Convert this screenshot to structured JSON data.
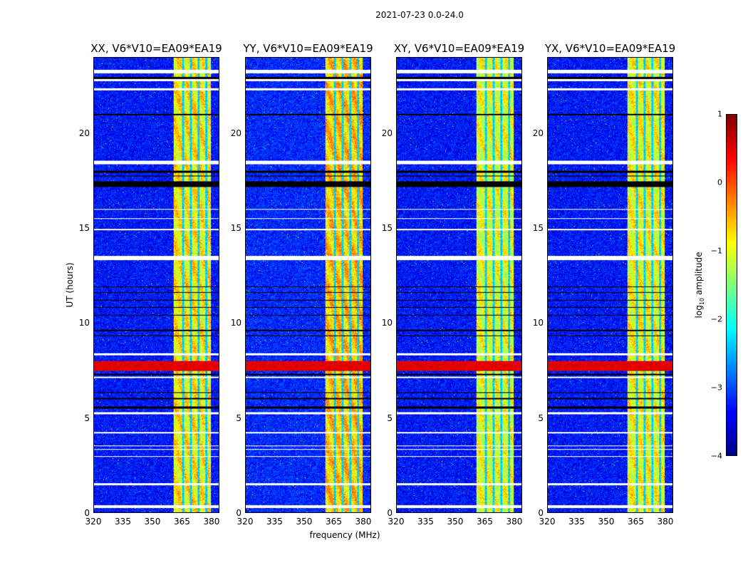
{
  "chart_data": {
    "type": "heatmap",
    "title": "2021-07-23 0.0-24.0",
    "xlabel": "frequency (MHz)",
    "ylabel": "UT (hours)",
    "xlim": [
      320,
      384
    ],
    "ylim": [
      0,
      24
    ],
    "xticks": [
      "320",
      "335",
      "350",
      "365",
      "380"
    ],
    "yticks": [
      "0",
      "5",
      "10",
      "15",
      "20"
    ],
    "panels": [
      {
        "title": "XX, V6*V10=EA09*EA19",
        "band_level": -0.8,
        "bg_level": -3.3
      },
      {
        "title": "YY, V6*V10=EA09*EA19",
        "band_level": -0.6,
        "bg_level": -3.2
      },
      {
        "title": "XY, V6*V10=EA09*EA19",
        "band_level": -1.0,
        "bg_level": -3.3
      },
      {
        "title": "YX, V6*V10=EA09*EA19",
        "band_level": -0.9,
        "bg_level": -3.3
      }
    ],
    "bright_band_mhz": [
      360.5,
      380
    ],
    "band_gaps_mhz": [
      365.5,
      369.5,
      373.5,
      377.5
    ],
    "flagged_white_ut": [
      [
        0.25,
        0.4
      ],
      [
        1.45,
        1.55
      ],
      [
        2.95,
        3.0
      ],
      [
        3.3,
        3.35
      ],
      [
        3.5,
        3.55
      ],
      [
        4.2,
        4.25
      ],
      [
        5.2,
        5.3
      ],
      [
        7.1,
        7.2
      ],
      [
        8.3,
        8.4
      ],
      [
        13.35,
        13.55
      ],
      [
        14.9,
        15.0
      ],
      [
        15.5,
        15.55
      ],
      [
        16.0,
        16.05
      ],
      [
        18.4,
        18.6
      ],
      [
        22.3,
        22.4
      ],
      [
        22.8,
        22.9
      ],
      [
        23.2,
        23.4
      ]
    ],
    "flagged_black_ut": [
      [
        5.5,
        5.6
      ],
      [
        6.0,
        6.05
      ],
      [
        6.3,
        6.35
      ],
      [
        7.25,
        7.35
      ],
      [
        9.3,
        9.35
      ],
      [
        9.6,
        9.65
      ],
      [
        10.4,
        10.45
      ],
      [
        10.8,
        10.85
      ],
      [
        11.2,
        11.25
      ],
      [
        11.6,
        11.65
      ],
      [
        11.9,
        11.95
      ],
      [
        17.2,
        17.5
      ],
      [
        17.75,
        17.8
      ],
      [
        17.95,
        18.05
      ],
      [
        21.0,
        21.05
      ],
      [
        22.9,
        23.0
      ]
    ],
    "rfi_red_ut": [
      7.5,
      8.0
    ],
    "colorbar": {
      "label": "log10 amplitude",
      "label_main": "log",
      "label_sub": "10",
      "label_rest": " amplitude",
      "clim": [
        -4,
        1
      ],
      "ticks": [
        "1",
        "0",
        "−1",
        "−2",
        "−3",
        "−4"
      ]
    }
  }
}
